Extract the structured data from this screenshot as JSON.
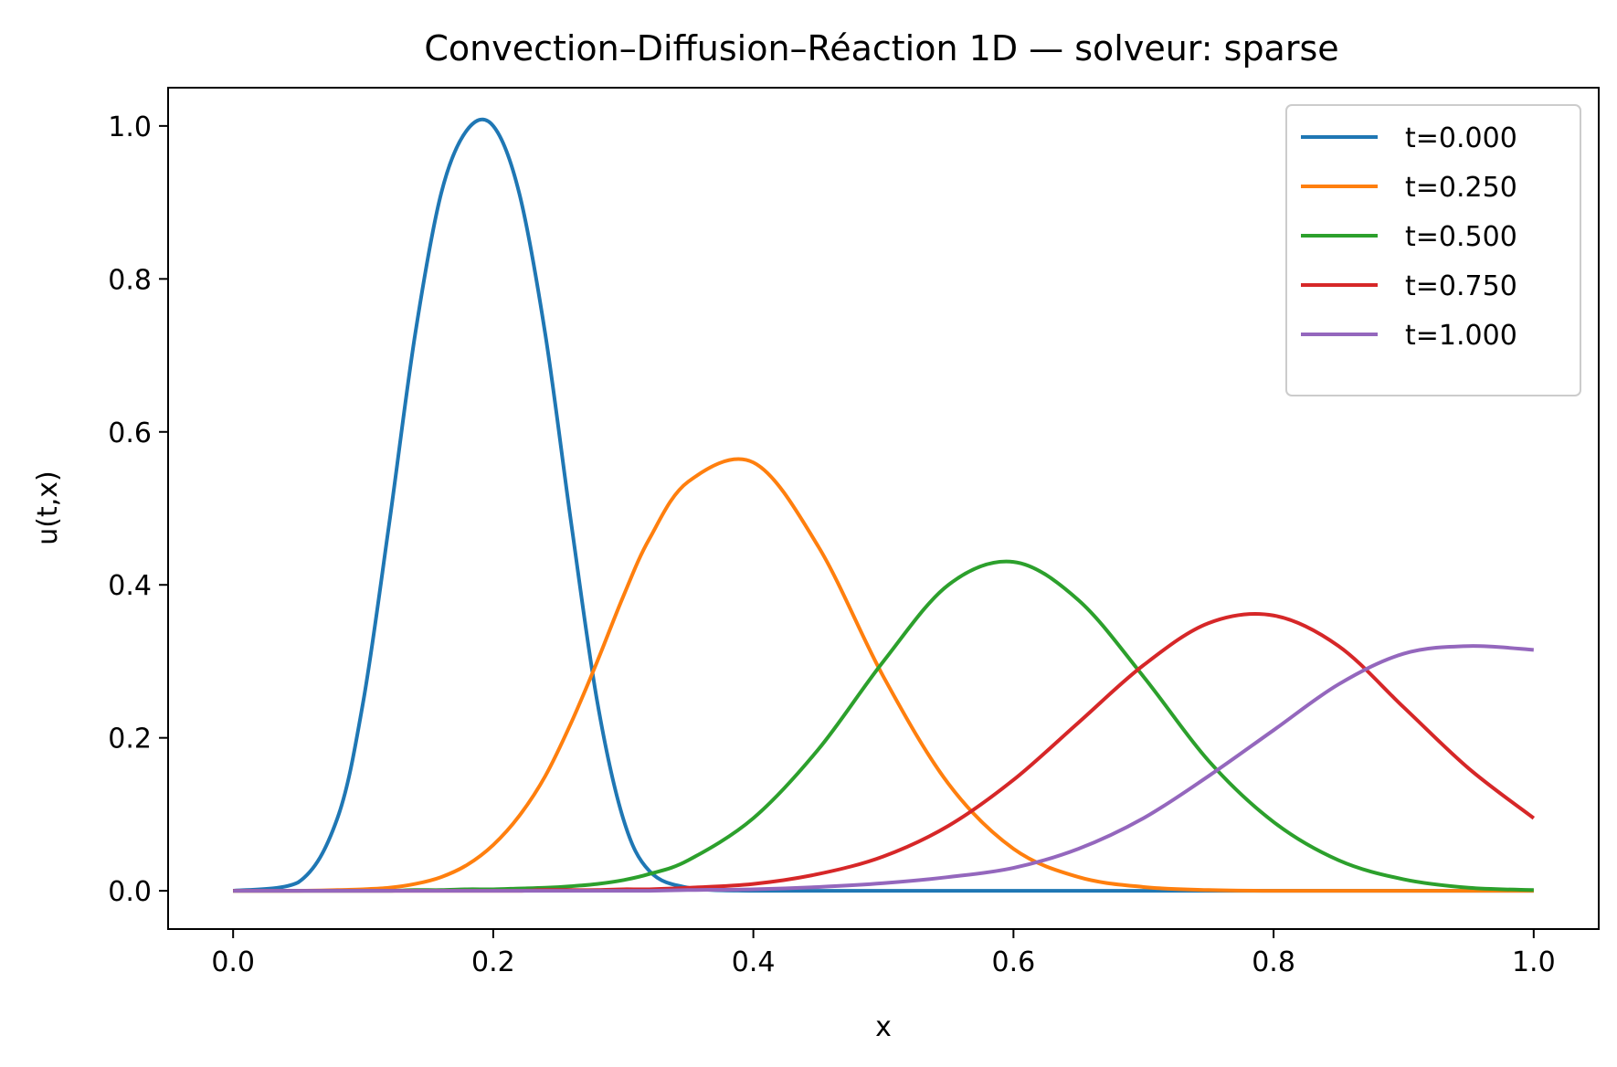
{
  "chart_data": {
    "type": "line",
    "title": "Convection–Diffusion–Réaction 1D — solveur: sparse",
    "xlabel": "x",
    "ylabel": "u(t,x)",
    "xlim": [
      -0.05,
      1.05
    ],
    "ylim": [
      -0.05,
      1.05
    ],
    "xticks": [
      0.0,
      0.2,
      0.4,
      0.6,
      0.8,
      1.0
    ],
    "xtick_labels": [
      "0.0",
      "0.2",
      "0.4",
      "0.6",
      "0.8",
      "1.0"
    ],
    "yticks": [
      0.0,
      0.2,
      0.4,
      0.6,
      0.8,
      1.0
    ],
    "ytick_labels": [
      "0.0",
      "0.2",
      "0.4",
      "0.6",
      "0.8",
      "1.0"
    ],
    "grid": false,
    "legend_position": "top-right",
    "x": [
      0.0,
      0.05,
      0.08,
      0.1,
      0.12,
      0.14,
      0.16,
      0.18,
      0.2,
      0.22,
      0.24,
      0.26,
      0.28,
      0.3,
      0.32,
      0.35,
      0.4,
      0.45,
      0.5,
      0.55,
      0.6,
      0.65,
      0.7,
      0.75,
      0.8,
      0.85,
      0.9,
      0.95,
      1.0
    ],
    "series": [
      {
        "name": "t=0.000",
        "color": "#1f77b4",
        "values": [
          0.0,
          0.011,
          0.094,
          0.247,
          0.48,
          0.728,
          0.912,
          0.995,
          1.0,
          0.912,
          0.728,
          0.48,
          0.247,
          0.094,
          0.026,
          0.004,
          0.0,
          0.0,
          0.0,
          0.0,
          0.0,
          0.0,
          0.0,
          0.0,
          0.0,
          0.0,
          0.0,
          0.0,
          0.0
        ]
      },
      {
        "name": "t=0.250",
        "color": "#ff7f0e",
        "values": [
          0.0,
          0.0,
          0.001,
          0.002,
          0.004,
          0.009,
          0.018,
          0.034,
          0.06,
          0.098,
          0.15,
          0.22,
          0.3,
          0.385,
          0.46,
          0.535,
          0.56,
          0.45,
          0.28,
          0.14,
          0.055,
          0.018,
          0.005,
          0.001,
          0.0,
          0.0,
          0.0,
          0.0,
          0.0
        ]
      },
      {
        "name": "t=0.500",
        "color": "#2ca02c",
        "values": [
          0.0,
          0.0,
          0.0,
          0.0,
          0.0,
          0.001,
          0.001,
          0.002,
          0.002,
          0.003,
          0.004,
          0.006,
          0.009,
          0.014,
          0.022,
          0.04,
          0.095,
          0.185,
          0.3,
          0.4,
          0.43,
          0.38,
          0.28,
          0.17,
          0.09,
          0.04,
          0.015,
          0.004,
          0.001
        ]
      },
      {
        "name": "t=0.750",
        "color": "#d62728",
        "values": [
          0.0,
          0.0,
          0.0,
          0.0,
          0.0,
          0.0,
          0.0,
          0.0,
          0.0,
          0.0,
          0.001,
          0.001,
          0.001,
          0.002,
          0.002,
          0.004,
          0.009,
          0.022,
          0.045,
          0.085,
          0.145,
          0.22,
          0.295,
          0.35,
          0.36,
          0.32,
          0.24,
          0.16,
          0.095
        ]
      },
      {
        "name": "t=1.000",
        "color": "#9467bd",
        "values": [
          0.0,
          0.0,
          0.0,
          0.0,
          0.0,
          0.0,
          0.0,
          0.0,
          0.0,
          0.0,
          0.0,
          0.0,
          0.0,
          0.0,
          0.0,
          0.001,
          0.002,
          0.005,
          0.01,
          0.018,
          0.03,
          0.055,
          0.095,
          0.15,
          0.21,
          0.27,
          0.31,
          0.32,
          0.315
        ]
      }
    ]
  }
}
